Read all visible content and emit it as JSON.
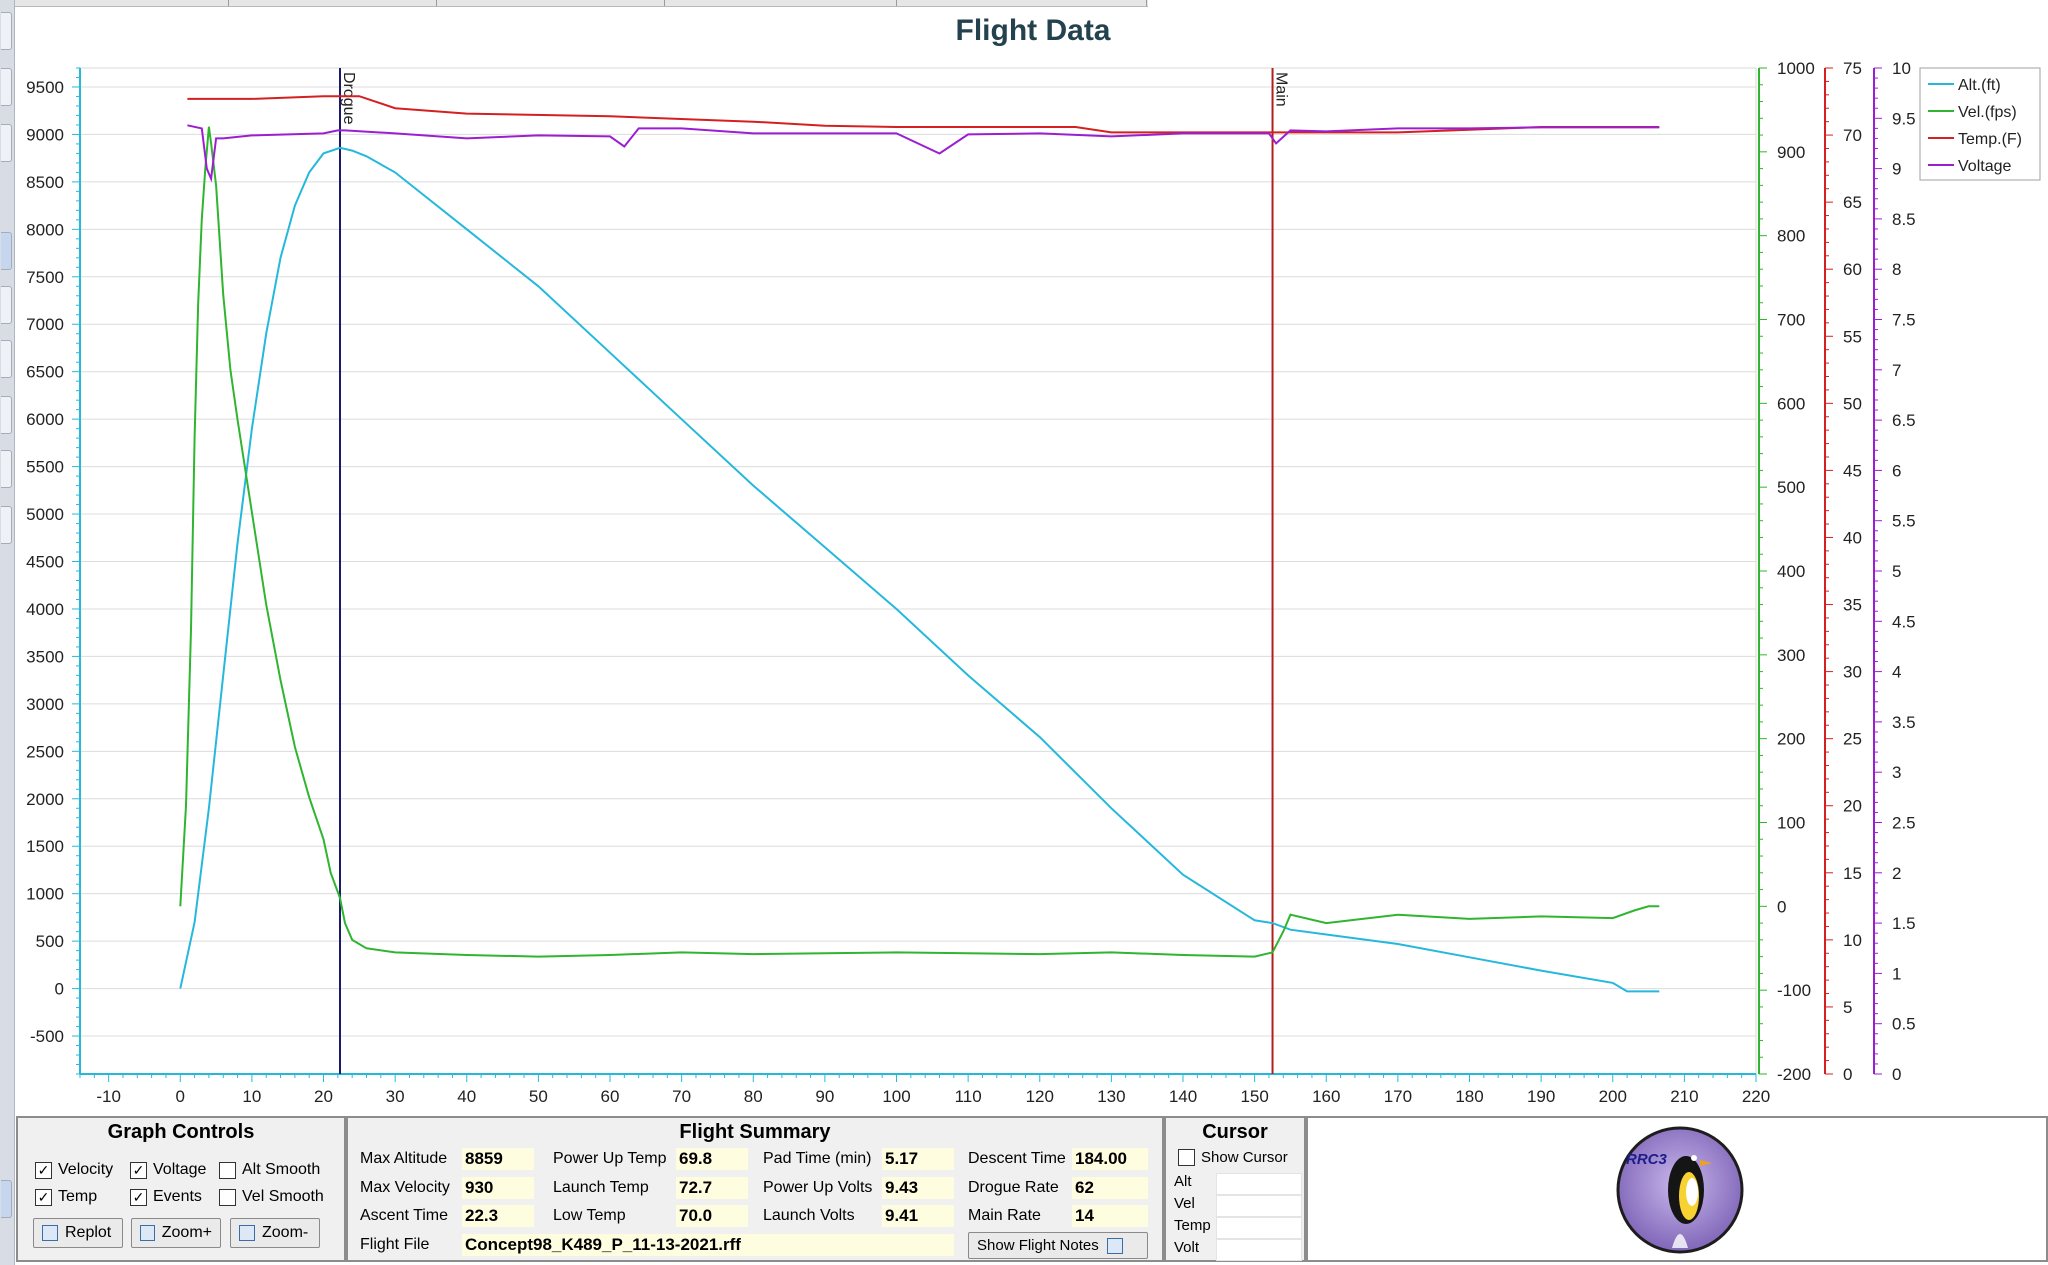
{
  "tabs": [
    "",
    "",
    "",
    "",
    ""
  ],
  "chart_data": {
    "type": "line",
    "title": "Flight Data",
    "x_ticks": [
      -10,
      0,
      10,
      20,
      30,
      40,
      50,
      60,
      70,
      80,
      90,
      100,
      110,
      120,
      130,
      140,
      150,
      160,
      170,
      180,
      190,
      200,
      210,
      220
    ],
    "xlim": [
      -14,
      220
    ],
    "axes": {
      "alt": {
        "ylim": [
          -900,
          9700
        ],
        "ticks": [
          -500,
          0,
          500,
          1000,
          1500,
          2000,
          2500,
          3000,
          3500,
          4000,
          4500,
          5000,
          5500,
          6000,
          6500,
          7000,
          7500,
          8000,
          8500,
          9000,
          9500
        ],
        "color": "#25b8dc"
      },
      "vel": {
        "ylim": [
          -200,
          1000
        ],
        "ticks": [
          -200,
          -100,
          0,
          100,
          200,
          300,
          400,
          500,
          600,
          700,
          800,
          900,
          1000
        ],
        "color": "#2fb52f"
      },
      "temp": {
        "ylim": [
          0,
          75
        ],
        "ticks": [
          0,
          5,
          10,
          15,
          20,
          25,
          30,
          35,
          40,
          45,
          50,
          55,
          60,
          65,
          70,
          75
        ],
        "color": "#d42020"
      },
      "volt": {
        "ylim": [
          0,
          10
        ],
        "ticks": [
          "0",
          "0.5",
          "1",
          "1.5",
          "2",
          "2.5",
          "3",
          "3.5",
          "4",
          "4.5",
          "5",
          "5.5",
          "6",
          "6.5",
          "7",
          "7.5",
          "8",
          "8.5",
          "9",
          "9.5",
          "10"
        ],
        "color": "#9b1fd0"
      }
    },
    "events": [
      {
        "label": "Drogue",
        "x": 22.3,
        "color": "#1a1a6e"
      },
      {
        "label": "Main",
        "x": 152.5,
        "color": "#b51d1d"
      }
    ],
    "legend": {
      "position": "top-right",
      "items": [
        "Alt.(ft)",
        "Vel.(fps)",
        "Temp.(F)",
        "Voltage"
      ]
    },
    "series": [
      {
        "name": "Alt.(ft)",
        "axis": "alt",
        "color": "#25b8dc",
        "x": [
          0,
          2,
          4,
          6,
          8,
          10,
          12,
          14,
          16,
          18,
          20,
          22.3,
          24,
          26,
          30,
          40,
          50,
          60,
          70,
          80,
          90,
          100,
          110,
          120,
          130,
          140,
          150,
          152.5,
          155,
          160,
          170,
          180,
          190,
          200,
          202,
          206.5
        ],
        "y": [
          0,
          700,
          1900,
          3300,
          4700,
          5900,
          6900,
          7700,
          8250,
          8600,
          8800,
          8859,
          8830,
          8770,
          8600,
          8000,
          7400,
          6700,
          6000,
          5300,
          4650,
          4000,
          3300,
          2650,
          1900,
          1200,
          720,
          690,
          620,
          570,
          470,
          330,
          190,
          60,
          -30,
          -30
        ]
      },
      {
        "name": "Vel.(fps)",
        "axis": "vel",
        "color": "#2fb52f",
        "x": [
          0,
          0.8,
          1.5,
          2,
          2.5,
          3,
          3.5,
          4,
          4.3,
          5,
          6,
          7,
          8,
          10,
          12,
          14,
          16,
          18,
          20,
          21,
          22.3,
          23,
          24,
          26,
          30,
          40,
          50,
          60,
          70,
          80,
          90,
          100,
          110,
          120,
          130,
          140,
          150,
          152.5,
          154,
          155,
          160,
          170,
          180,
          190,
          200,
          203,
          205,
          206.5
        ],
        "y": [
          0,
          120,
          330,
          560,
          720,
          820,
          880,
          930,
          910,
          860,
          730,
          640,
          580,
          470,
          360,
          270,
          190,
          130,
          80,
          40,
          10,
          -20,
          -40,
          -50,
          -55,
          -58,
          -60,
          -58,
          -55,
          -57,
          -56,
          -55,
          -56,
          -57,
          -55,
          -58,
          -60,
          -55,
          -30,
          -10,
          -20,
          -10,
          -15,
          -12,
          -14,
          -5,
          0,
          0
        ]
      },
      {
        "name": "Temp.(F)",
        "axis": "temp",
        "color": "#d42020",
        "x": [
          1,
          10,
          20,
          25,
          30,
          40,
          60,
          80,
          90,
          100,
          120,
          125,
          130,
          140,
          150,
          160,
          170,
          180,
          190,
          200,
          206.5
        ],
        "y": [
          72.7,
          72.7,
          72.9,
          72.9,
          72.0,
          71.6,
          71.4,
          71.0,
          70.7,
          70.6,
          70.6,
          70.6,
          70.2,
          70.2,
          70.2,
          70.2,
          70.2,
          70.4,
          70.6,
          70.6,
          70.6
        ]
      },
      {
        "name": "Voltage",
        "axis": "volt",
        "color": "#9b1fd0",
        "x": [
          1,
          3,
          3.7,
          4.3,
          5,
          6,
          10,
          20,
          22,
          23,
          30,
          40,
          50,
          60,
          62,
          64,
          70,
          80,
          90,
          100,
          106,
          110,
          120,
          130,
          140,
          150,
          152,
          153,
          155,
          160,
          170,
          180,
          190,
          200,
          206.5
        ],
        "y": [
          9.43,
          9.4,
          9.0,
          8.9,
          9.3,
          9.3,
          9.33,
          9.35,
          9.38,
          9.38,
          9.35,
          9.3,
          9.33,
          9.32,
          9.22,
          9.4,
          9.4,
          9.35,
          9.35,
          9.35,
          9.15,
          9.34,
          9.35,
          9.32,
          9.35,
          9.35,
          9.35,
          9.25,
          9.38,
          9.37,
          9.4,
          9.4,
          9.41,
          9.41,
          9.41
        ]
      }
    ]
  },
  "graph_controls": {
    "title": "Graph Controls",
    "checkboxes": [
      {
        "label": "Velocity",
        "checked": true
      },
      {
        "label": "Voltage",
        "checked": true
      },
      {
        "label": "Alt Smooth",
        "checked": false
      },
      {
        "label": "Temp",
        "checked": true
      },
      {
        "label": "Events",
        "checked": true
      },
      {
        "label": "Vel Smooth",
        "checked": false
      }
    ],
    "buttons": [
      "Replot",
      "Zoom+",
      "Zoom-"
    ]
  },
  "flight_summary": {
    "title": "Flight Summary",
    "max_altitude_label": "Max Altitude",
    "max_altitude": "8859",
    "max_velocity_label": "Max Velocity",
    "max_velocity": "930",
    "ascent_time_label": "Ascent Time",
    "ascent_time": "22.3",
    "power_up_temp_label": "Power Up Temp",
    "power_up_temp": "69.8",
    "launch_temp_label": "Launch Temp",
    "launch_temp": "72.7",
    "low_temp_label": "Low Temp",
    "low_temp": "70.0",
    "pad_time_label": "Pad Time (min)",
    "pad_time": "5.17",
    "power_up_volts_label": "Power Up Volts",
    "power_up_volts": "9.43",
    "launch_volts_label": "Launch Volts",
    "launch_volts": "9.41",
    "descent_time_label": "Descent Time",
    "descent_time": "184.00",
    "drogue_rate_label": "Drogue Rate",
    "drogue_rate": "62",
    "main_rate_label": "Main Rate",
    "main_rate": "14",
    "flight_file_label": "Flight File",
    "flight_file": "Concept98_K489_P_11-13-2021.rff",
    "show_notes_label": "Show Flight Notes"
  },
  "cursor": {
    "title": "Cursor",
    "show_cursor_label": "Show Cursor",
    "show_cursor_checked": false,
    "fields": [
      "Alt",
      "Vel",
      "Temp",
      "Volt"
    ]
  },
  "logo": {
    "text": "RRC3"
  }
}
